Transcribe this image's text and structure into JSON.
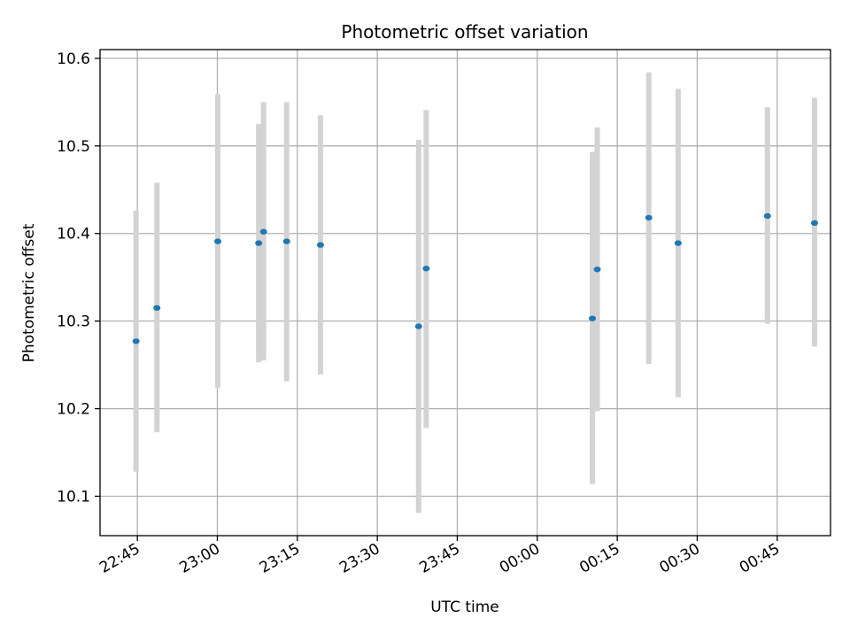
{
  "chart_data": {
    "type": "scatter",
    "title": "Photometric offset variation",
    "xlabel": "UTC time",
    "ylabel": "Photometric offset",
    "grid": true,
    "xlim": [
      "22:38",
      "00:55"
    ],
    "ylim": [
      10.055,
      10.61
    ],
    "x_ticks": [
      "22:45",
      "23:00",
      "23:15",
      "23:30",
      "23:45",
      "00:00",
      "00:15",
      "00:30",
      "00:45"
    ],
    "y_ticks": [
      "10.1",
      "10.2",
      "10.3",
      "10.4",
      "10.5",
      "10.6"
    ],
    "colors": {
      "points": "#1f77b4",
      "error_bars": "#d3d3d3",
      "grid": "#b0b0b0"
    },
    "series": [
      {
        "points": [
          {
            "x": "22:44:45",
            "y": 10.277,
            "y_low": 10.128,
            "y_high": 10.426
          },
          {
            "x": "22:48:40",
            "y": 10.315,
            "y_low": 10.173,
            "y_high": 10.458
          },
          {
            "x": "23:00:05",
            "y": 10.391,
            "y_low": 10.224,
            "y_high": 10.559
          },
          {
            "x": "23:07:45",
            "y": 10.389,
            "y_low": 10.253,
            "y_high": 10.525
          },
          {
            "x": "23:08:40",
            "y": 10.402,
            "y_low": 10.255,
            "y_high": 10.55
          },
          {
            "x": "23:13:00",
            "y": 10.391,
            "y_low": 10.231,
            "y_high": 10.55
          },
          {
            "x": "23:19:20",
            "y": 10.387,
            "y_low": 10.239,
            "y_high": 10.535
          },
          {
            "x": "23:37:45",
            "y": 10.294,
            "y_low": 10.081,
            "y_high": 10.507
          },
          {
            "x": "23:39:10",
            "y": 10.36,
            "y_low": 10.178,
            "y_high": 10.541
          },
          {
            "x": "00:10:20",
            "y": 10.303,
            "y_low": 10.114,
            "y_high": 10.493
          },
          {
            "x": "00:11:15",
            "y": 10.359,
            "y_low": 10.197,
            "y_high": 10.521
          },
          {
            "x": "00:20:55",
            "y": 10.418,
            "y_low": 10.251,
            "y_high": 10.584
          },
          {
            "x": "00:26:25",
            "y": 10.389,
            "y_low": 10.213,
            "y_high": 10.565
          },
          {
            "x": "00:43:10",
            "y": 10.42,
            "y_low": 10.297,
            "y_high": 10.544
          },
          {
            "x": "00:52:00",
            "y": 10.412,
            "y_low": 10.271,
            "y_high": 10.555
          }
        ]
      }
    ]
  }
}
